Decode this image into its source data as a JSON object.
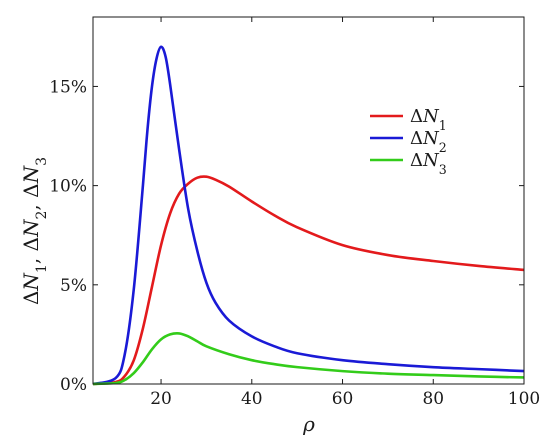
{
  "chart_data": {
    "type": "line",
    "xlabel": "ρ",
    "ylabel": "ΔN₁, ΔN₂, ΔN₃",
    "xlim": [
      5,
      100
    ],
    "ylim": [
      0,
      18.5
    ],
    "x_ticks": [
      20,
      40,
      60,
      80,
      100
    ],
    "y_ticks": [
      0,
      5,
      10,
      15
    ],
    "x_tick_labels": [
      "20",
      "40",
      "60",
      "80",
      "100"
    ],
    "y_tick_labels": [
      "0%",
      "5%",
      "10%",
      "15%"
    ],
    "grid": false,
    "legend_position": "upper-right",
    "series": [
      {
        "name": "ΔN₁",
        "color": "#e31a1c",
        "x": [
          5,
          10,
          12,
          14,
          16,
          18,
          20,
          22,
          24,
          26,
          28,
          30,
          32,
          35,
          40,
          45,
          50,
          60,
          70,
          80,
          90,
          100
        ],
        "y": [
          0,
          0.1,
          0.4,
          1.2,
          2.8,
          4.9,
          7.0,
          8.6,
          9.6,
          10.1,
          10.4,
          10.45,
          10.3,
          9.95,
          9.2,
          8.5,
          7.9,
          7.0,
          6.5,
          6.2,
          5.95,
          5.75
        ]
      },
      {
        "name": "ΔN₂",
        "color": "#1a1ad6",
        "x": [
          5,
          10,
          12,
          14,
          16,
          17,
          18,
          19,
          20,
          21,
          22,
          24,
          26,
          28,
          30,
          32,
          35,
          40,
          45,
          50,
          60,
          70,
          80,
          90,
          100
        ],
        "y": [
          0,
          0.3,
          1.5,
          4.8,
          10.0,
          12.8,
          15.0,
          16.4,
          17.0,
          16.5,
          15.1,
          11.8,
          8.8,
          6.7,
          5.1,
          4.1,
          3.2,
          2.4,
          1.9,
          1.55,
          1.2,
          1.0,
          0.85,
          0.75,
          0.65
        ]
      },
      {
        "name": "ΔN₃",
        "color": "#33cc1a",
        "x": [
          5,
          10,
          12,
          14,
          16,
          18,
          20,
          22,
          24,
          26,
          28,
          30,
          35,
          40,
          45,
          50,
          60,
          70,
          80,
          90,
          100
        ],
        "y": [
          0,
          0.05,
          0.2,
          0.55,
          1.1,
          1.75,
          2.25,
          2.5,
          2.55,
          2.4,
          2.15,
          1.9,
          1.5,
          1.2,
          1.0,
          0.85,
          0.65,
          0.52,
          0.45,
          0.38,
          0.33
        ]
      }
    ]
  }
}
